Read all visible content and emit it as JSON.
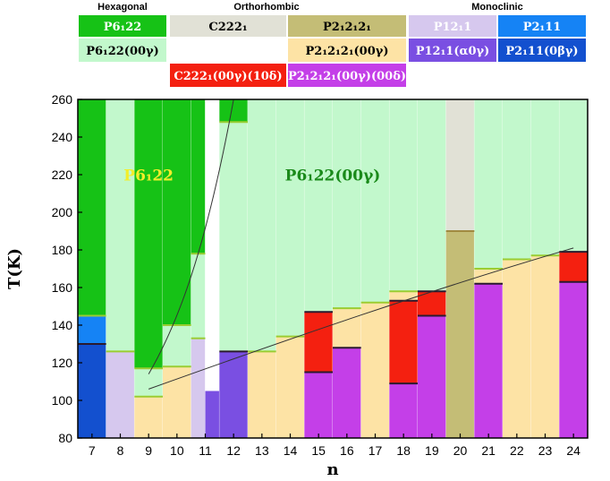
{
  "chart_data": {
    "type": "bar",
    "xlabel": "n",
    "ylabel": "T(K)",
    "ylim": [
      80,
      260
    ],
    "yticks": [
      80,
      100,
      120,
      140,
      160,
      180,
      200,
      220,
      240,
      260
    ],
    "categories": [
      "7",
      "8",
      "9",
      "10",
      "11",
      "12",
      "13",
      "14",
      "15",
      "16",
      "17",
      "18",
      "19",
      "20",
      "21",
      "22",
      "23",
      "24"
    ],
    "legend": {
      "groups": [
        {
          "name": "Hexagonal"
        },
        {
          "name": "Orthorhombic"
        },
        {
          "name": "Monoclinic"
        }
      ],
      "entries": [
        {
          "id": "P6122",
          "label": "P6₁22",
          "color": "#16c216",
          "text_color": "#ffffff"
        },
        {
          "id": "P6122_00g",
          "label": "P6₁22(00γ)",
          "color": "#c2f8cc",
          "text_color": "#000000"
        },
        {
          "id": "C2221",
          "label": "C222₁",
          "color": "#e1e1d6",
          "text_color": "#000000"
        },
        {
          "id": "C2221_00g_10d",
          "label": "C222₁(00γ)(10δ)",
          "color": "#f42010",
          "text_color": "#ffffff"
        },
        {
          "id": "P212121",
          "label": "P2₁2₁2₁",
          "color": "#c4bd76",
          "text_color": "#000000"
        },
        {
          "id": "P212121_00g",
          "label": "P2₁2₁2₁(00γ)",
          "color": "#fde3a5",
          "text_color": "#000000"
        },
        {
          "id": "P212121_00g_00d",
          "label": "P2₁2₁2₁(00γ)(00δ)",
          "color": "#c43fe8",
          "text_color": "#ffffff"
        },
        {
          "id": "P1211",
          "label": "P12₁1",
          "color": "#d6c8ee",
          "text_color": "#ffffff"
        },
        {
          "id": "P1211_a0g",
          "label": "P12₁1(α0γ)",
          "color": "#7a4fe2",
          "text_color": "#ffffff"
        },
        {
          "id": "P2111",
          "label": "P2₁11",
          "color": "#1583f5",
          "text_color": "#ffffff"
        },
        {
          "id": "P2111_0bg",
          "label": "P2₁11(0βγ)",
          "color": "#1350cf",
          "text_color": "#ffffff"
        }
      ]
    },
    "annotations": [
      {
        "text": "P6₁22",
        "color": "#f2ee2a"
      },
      {
        "text": "P6₁22(00γ)",
        "color": "#1a8a1a"
      }
    ],
    "columns": [
      {
        "n": 7,
        "segments": [
          {
            "phase": "P2111_0bg",
            "from": 80,
            "to": 130
          },
          {
            "phase": "P2111",
            "from": 130,
            "to": 145
          },
          {
            "phase": "P6122",
            "from": 145,
            "to": 260
          }
        ]
      },
      {
        "n": 8,
        "segments": [
          {
            "phase": "P1211",
            "from": 80,
            "to": 126
          },
          {
            "phase": "P6122_00g",
            "from": 126,
            "to": 260
          }
        ]
      },
      {
        "n": 9,
        "segments": [
          {
            "phase": "P212121_00g",
            "from": 80,
            "to": 102
          },
          {
            "phase": "P6122_00g",
            "from": 102,
            "to": 117
          },
          {
            "phase": "P6122",
            "from": 117,
            "to": 260
          }
        ]
      },
      {
        "n": 10,
        "segments": [
          {
            "phase": "P212121_00g",
            "from": 80,
            "to": 118
          },
          {
            "phase": "P6122_00g",
            "from": 118,
            "to": 140
          },
          {
            "phase": "P6122",
            "from": 140,
            "to": 260
          }
        ]
      },
      {
        "n": 11,
        "segments": [
          {
            "phase": "P1211",
            "from": 80,
            "to": 133
          },
          {
            "phase": "P6122_00g",
            "from": 133,
            "to": 178
          },
          {
            "phase": "P6122",
            "from": 178,
            "to": 260
          }
        ]
      },
      {
        "n": 11.5,
        "segments": [
          {
            "phase": "P1211_a0g",
            "from": 80,
            "to": 105
          }
        ]
      },
      {
        "n": 12,
        "segments": [
          {
            "phase": "P1211_a0g",
            "from": 80,
            "to": 126
          },
          {
            "phase": "P6122_00g",
            "from": 126,
            "to": 248
          },
          {
            "phase": "P6122",
            "from": 248,
            "to": 260
          }
        ]
      },
      {
        "n": 13,
        "segments": [
          {
            "phase": "P212121_00g",
            "from": 80,
            "to": 126
          },
          {
            "phase": "P6122_00g",
            "from": 126,
            "to": 260
          }
        ]
      },
      {
        "n": 14,
        "segments": [
          {
            "phase": "P212121_00g",
            "from": 80,
            "to": 134
          },
          {
            "phase": "P6122_00g",
            "from": 134,
            "to": 260
          }
        ]
      },
      {
        "n": 15,
        "segments": [
          {
            "phase": "P212121_00g_00d",
            "from": 80,
            "to": 115
          },
          {
            "phase": "C2221_00g_10d",
            "from": 115,
            "to": 147
          },
          {
            "phase": "P6122_00g",
            "from": 147,
            "to": 260
          }
        ]
      },
      {
        "n": 16,
        "segments": [
          {
            "phase": "P212121_00g_00d",
            "from": 80,
            "to": 128
          },
          {
            "phase": "P212121_00g",
            "from": 128,
            "to": 149
          },
          {
            "phase": "P6122_00g",
            "from": 149,
            "to": 260
          }
        ]
      },
      {
        "n": 17,
        "segments": [
          {
            "phase": "P212121_00g",
            "from": 80,
            "to": 152
          },
          {
            "phase": "P6122_00g",
            "from": 152,
            "to": 260
          }
        ]
      },
      {
        "n": 18,
        "segments": [
          {
            "phase": "P212121_00g_00d",
            "from": 80,
            "to": 109
          },
          {
            "phase": "C2221_00g_10d",
            "from": 109,
            "to": 153
          },
          {
            "phase": "P212121_00g",
            "from": 153,
            "to": 158
          },
          {
            "phase": "P6122_00g",
            "from": 158,
            "to": 260
          }
        ]
      },
      {
        "n": 19,
        "segments": [
          {
            "phase": "P212121_00g_00d",
            "from": 80,
            "to": 145
          },
          {
            "phase": "C2221_00g_10d",
            "from": 145,
            "to": 158
          },
          {
            "phase": "P6122_00g",
            "from": 158,
            "to": 260
          }
        ]
      },
      {
        "n": 20,
        "segments": [
          {
            "phase": "P212121",
            "from": 80,
            "to": 190
          },
          {
            "phase": "C2221",
            "from": 190,
            "to": 260
          }
        ]
      },
      {
        "n": 21,
        "segments": [
          {
            "phase": "P212121_00g_00d",
            "from": 80,
            "to": 162
          },
          {
            "phase": "P212121_00g",
            "from": 162,
            "to": 170
          },
          {
            "phase": "P6122_00g",
            "from": 170,
            "to": 260
          }
        ]
      },
      {
        "n": 22,
        "segments": [
          {
            "phase": "P212121_00g",
            "from": 80,
            "to": 175
          },
          {
            "phase": "P6122_00g",
            "from": 175,
            "to": 260
          }
        ]
      },
      {
        "n": 23,
        "segments": [
          {
            "phase": "P212121_00g",
            "from": 80,
            "to": 177
          },
          {
            "phase": "P6122_00g",
            "from": 177,
            "to": 260
          }
        ]
      },
      {
        "n": 24,
        "segments": [
          {
            "phase": "P212121_00g_00d",
            "from": 80,
            "to": 163
          },
          {
            "phase": "C2221_00g_10d",
            "from": 163,
            "to": 179
          },
          {
            "phase": "P6122_00g",
            "from": 179,
            "to": 260
          }
        ]
      }
    ],
    "trend_lines": [
      {
        "points": [
          [
            9,
            114
          ],
          [
            10,
            140
          ],
          [
            11,
            178
          ],
          [
            12,
            260
          ]
        ]
      },
      {
        "points": [
          [
            9,
            106
          ],
          [
            14,
            133
          ],
          [
            19,
            159
          ],
          [
            24,
            181
          ]
        ]
      }
    ]
  }
}
